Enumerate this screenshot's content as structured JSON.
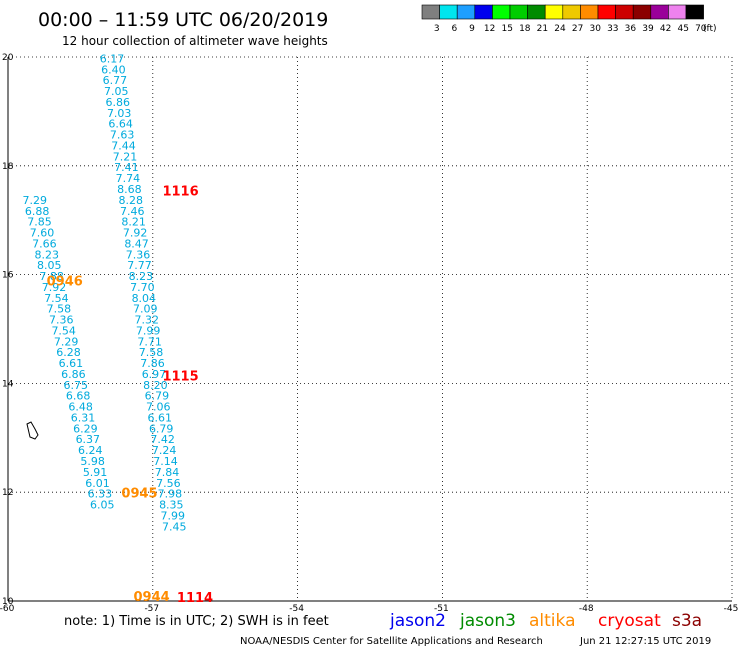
{
  "header": {
    "title": "00:00 – 11:59 UTC 06/20/2019",
    "subtitle": "12 hour collection of altimeter wave heights"
  },
  "color_scale": {
    "unit": "(ft)",
    "bins": [
      {
        "label": "3",
        "color": "#7f7f7f"
      },
      {
        "label": "6",
        "color": "#00e5ee"
      },
      {
        "label": "9",
        "color": "#1e9fff"
      },
      {
        "label": "12",
        "color": "#0000ee"
      },
      {
        "label": "15",
        "color": "#00ff00"
      },
      {
        "label": "18",
        "color": "#00cd00"
      },
      {
        "label": "21",
        "color": "#008b00"
      },
      {
        "label": "24",
        "color": "#ffff00"
      },
      {
        "label": "27",
        "color": "#eec900"
      },
      {
        "label": "30",
        "color": "#ff8c00"
      },
      {
        "label": "33",
        "color": "#ff0000"
      },
      {
        "label": "36",
        "color": "#cd0000"
      },
      {
        "label": "39",
        "color": "#8b0000"
      },
      {
        "label": "42",
        "color": "#9a009a"
      },
      {
        "label": "45",
        "color": "#ee82ee"
      },
      {
        "label": "70",
        "color": "#000000"
      }
    ]
  },
  "chart_data": {
    "type": "scatter",
    "x_ticks": [
      -60,
      -57,
      -54,
      -51,
      -48,
      -45
    ],
    "y_ticks": [
      10,
      12,
      14,
      16,
      18,
      20
    ],
    "xlim": [
      -60,
      -45
    ],
    "ylim": [
      10,
      20
    ],
    "grid": true,
    "wave_height_color": "#00aadd",
    "wave_heights": [
      {
        "lon": -58.1,
        "lat": 19.9,
        "value": "6.17"
      },
      {
        "lon": -58.07,
        "lat": 19.7,
        "value": "6.40"
      },
      {
        "lon": -58.04,
        "lat": 19.5,
        "value": "6.77"
      },
      {
        "lon": -58.01,
        "lat": 19.3,
        "value": "7.05"
      },
      {
        "lon": -57.98,
        "lat": 19.1,
        "value": "6.86"
      },
      {
        "lon": -57.95,
        "lat": 18.9,
        "value": "7.03"
      },
      {
        "lon": -57.92,
        "lat": 18.7,
        "value": "6.64"
      },
      {
        "lon": -57.89,
        "lat": 18.5,
        "value": "7.63"
      },
      {
        "lon": -57.86,
        "lat": 18.3,
        "value": "7.44"
      },
      {
        "lon": -57.83,
        "lat": 18.1,
        "value": "7.21"
      },
      {
        "lon": -57.8,
        "lat": 17.9,
        "value": "7.41"
      },
      {
        "lon": -57.77,
        "lat": 17.7,
        "value": "7.74"
      },
      {
        "lon": -57.74,
        "lat": 17.5,
        "value": "8.68"
      },
      {
        "lon": -57.71,
        "lat": 17.3,
        "value": "8.28"
      },
      {
        "lon": -57.68,
        "lat": 17.1,
        "value": "7.46"
      },
      {
        "lon": -57.65,
        "lat": 16.9,
        "value": "8.21"
      },
      {
        "lon": -57.62,
        "lat": 16.7,
        "value": "7.92"
      },
      {
        "lon": -57.59,
        "lat": 16.5,
        "value": "8.47"
      },
      {
        "lon": -57.56,
        "lat": 16.3,
        "value": "7.36"
      },
      {
        "lon": -57.53,
        "lat": 16.1,
        "value": "7.77"
      },
      {
        "lon": -57.5,
        "lat": 15.9,
        "value": "8.23"
      },
      {
        "lon": -57.47,
        "lat": 15.7,
        "value": "7.70"
      },
      {
        "lon": -57.44,
        "lat": 15.5,
        "value": "8.04"
      },
      {
        "lon": -57.41,
        "lat": 15.3,
        "value": "7.09"
      },
      {
        "lon": -57.38,
        "lat": 15.1,
        "value": "7.32"
      },
      {
        "lon": -57.35,
        "lat": 14.9,
        "value": "7.99"
      },
      {
        "lon": -57.32,
        "lat": 14.7,
        "value": "7.71"
      },
      {
        "lon": -57.29,
        "lat": 14.5,
        "value": "7.58"
      },
      {
        "lon": -57.26,
        "lat": 14.3,
        "value": "7.86"
      },
      {
        "lon": -57.23,
        "lat": 14.1,
        "value": "6.97"
      },
      {
        "lon": -57.2,
        "lat": 13.9,
        "value": "8.20"
      },
      {
        "lon": -57.17,
        "lat": 13.7,
        "value": "6.79"
      },
      {
        "lon": -57.14,
        "lat": 13.5,
        "value": "7.06"
      },
      {
        "lon": -57.11,
        "lat": 13.3,
        "value": "6.61"
      },
      {
        "lon": -57.08,
        "lat": 13.1,
        "value": "6.79"
      },
      {
        "lon": -57.05,
        "lat": 12.9,
        "value": "7.42"
      },
      {
        "lon": -57.02,
        "lat": 12.7,
        "value": "7.24"
      },
      {
        "lon": -56.99,
        "lat": 12.5,
        "value": "7.14"
      },
      {
        "lon": -56.96,
        "lat": 12.3,
        "value": "7.84"
      },
      {
        "lon": -56.93,
        "lat": 12.1,
        "value": "7.56"
      },
      {
        "lon": -56.9,
        "lat": 11.9,
        "value": "7.98"
      },
      {
        "lon": -56.87,
        "lat": 11.7,
        "value": "8.35"
      },
      {
        "lon": -56.84,
        "lat": 11.5,
        "value": "7.99"
      },
      {
        "lon": -56.81,
        "lat": 11.3,
        "value": "7.45"
      },
      {
        "lon": -59.7,
        "lat": 17.3,
        "value": "7.29"
      },
      {
        "lon": -59.65,
        "lat": 17.1,
        "value": "6.88"
      },
      {
        "lon": -59.6,
        "lat": 16.9,
        "value": "7.85"
      },
      {
        "lon": -59.55,
        "lat": 16.7,
        "value": "7.60"
      },
      {
        "lon": -59.5,
        "lat": 16.5,
        "value": "7.66"
      },
      {
        "lon": -59.45,
        "lat": 16.3,
        "value": "8.23"
      },
      {
        "lon": -59.4,
        "lat": 16.1,
        "value": "8.05"
      },
      {
        "lon": -59.35,
        "lat": 15.9,
        "value": "7.88"
      },
      {
        "lon": -59.3,
        "lat": 15.7,
        "value": "7.92"
      },
      {
        "lon": -59.25,
        "lat": 15.5,
        "value": "7.54"
      },
      {
        "lon": -59.2,
        "lat": 15.3,
        "value": "7.58"
      },
      {
        "lon": -59.15,
        "lat": 15.1,
        "value": "7.36"
      },
      {
        "lon": -59.1,
        "lat": 14.9,
        "value": "7.54"
      },
      {
        "lon": -59.05,
        "lat": 14.7,
        "value": "7.29"
      },
      {
        "lon": -59.0,
        "lat": 14.5,
        "value": "6.28"
      },
      {
        "lon": -58.95,
        "lat": 14.3,
        "value": "6.61"
      },
      {
        "lon": -58.9,
        "lat": 14.1,
        "value": "6.86"
      },
      {
        "lon": -58.85,
        "lat": 13.9,
        "value": "6.75"
      },
      {
        "lon": -58.8,
        "lat": 13.7,
        "value": "6.68"
      },
      {
        "lon": -58.75,
        "lat": 13.5,
        "value": "6.48"
      },
      {
        "lon": -58.7,
        "lat": 13.3,
        "value": "6.31"
      },
      {
        "lon": -58.65,
        "lat": 13.1,
        "value": "6.29"
      },
      {
        "lon": -58.6,
        "lat": 12.9,
        "value": "6.37"
      },
      {
        "lon": -58.55,
        "lat": 12.7,
        "value": "6.24"
      },
      {
        "lon": -58.5,
        "lat": 12.5,
        "value": "5.98"
      },
      {
        "lon": -58.45,
        "lat": 12.3,
        "value": "5.91"
      },
      {
        "lon": -58.4,
        "lat": 12.1,
        "value": "6.01"
      },
      {
        "lon": -58.35,
        "lat": 11.9,
        "value": "6.33"
      },
      {
        "lon": -58.3,
        "lat": 11.7,
        "value": "6.05"
      }
    ],
    "pass_times": [
      {
        "lon": -56.8,
        "lat": 17.45,
        "value": "1116",
        "color": "#ff0000"
      },
      {
        "lon": -59.2,
        "lat": 15.8,
        "value": "0946",
        "color": "#ff8c00"
      },
      {
        "lon": -56.8,
        "lat": 14.05,
        "value": "1115",
        "color": "#ff0000"
      },
      {
        "lon": -57.65,
        "lat": 11.9,
        "value": "0945",
        "color": "#ff8c00"
      },
      {
        "lon": -57.4,
        "lat": 10.0,
        "value": "0944",
        "color": "#ff8c00"
      },
      {
        "lon": -56.5,
        "lat": 9.98,
        "value": "1114",
        "color": "#ff0000"
      }
    ]
  },
  "footer": {
    "note": "note:  1) Time is in UTC;  2) SWH is in feet",
    "satellites": [
      {
        "label": "jason2",
        "color": "#0000ee"
      },
      {
        "label": "jason3",
        "color": "#008b00"
      },
      {
        "label": "altika",
        "color": "#ff8c00"
      },
      {
        "label": "cryosat",
        "color": "#ff0000"
      },
      {
        "label": "s3a",
        "color": "#8b0000"
      }
    ],
    "credit": "NOAA/NESDIS Center for Satellite Applications and Research",
    "timestamp": "Jun 21 12:27:15 UTC 2019"
  }
}
